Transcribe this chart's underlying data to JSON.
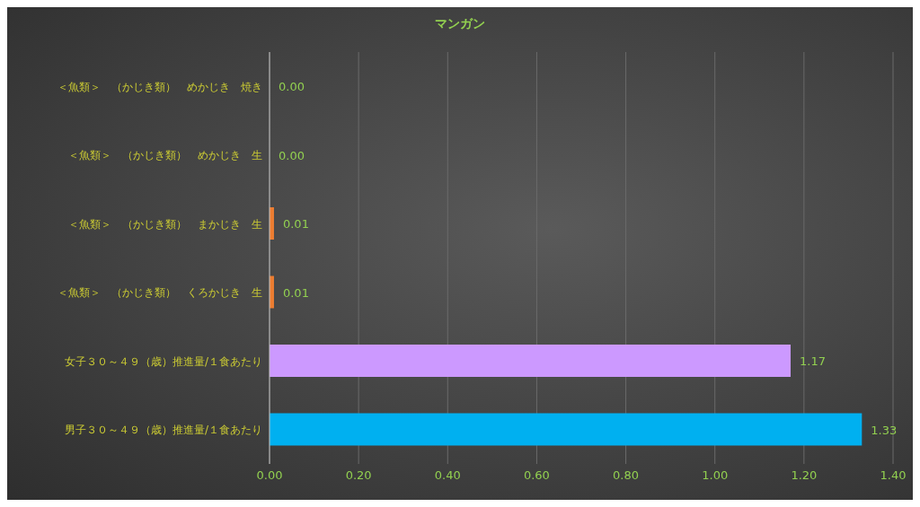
{
  "chart_data": {
    "type": "bar",
    "orientation": "horizontal",
    "title": "マンガン",
    "categories": [
      "＜魚類＞　（かじき類）　めかじき　焼き",
      "＜魚類＞　（かじき類）　めかじき　生",
      "＜魚類＞　（かじき類）　まかじき　生",
      "＜魚類＞　（かじき類）　くろかじき　生",
      "女子３０～４９（歳）推進量/１食あたり",
      "男子３０～４９（歳）推進量/１食あたり"
    ],
    "values": [
      0,
      0,
      0.01,
      0.01,
      1.17,
      1.33
    ],
    "value_labels": [
      "0.00",
      "0.00",
      "0.01",
      "0.01",
      "1.17",
      "1.33"
    ],
    "colors": [
      "#ed7d31",
      "#ed7d31",
      "#ed7d31",
      "#ed7d31",
      "#cc99ff",
      "#00b0f0"
    ],
    "xlim": [
      0,
      1.4
    ],
    "xticks": [
      {
        "value": 0,
        "label": "0.00"
      },
      {
        "value": 0.2,
        "label": "0.20"
      },
      {
        "value": 0.4,
        "label": "0.40"
      },
      {
        "value": 0.6,
        "label": "0.60"
      },
      {
        "value": 0.8,
        "label": "0.80"
      },
      {
        "value": 1.0,
        "label": "1.00"
      },
      {
        "value": 1.2,
        "label": "1.20"
      },
      {
        "value": 1.4,
        "label": "1.40"
      }
    ],
    "grid": "x",
    "legend": false
  }
}
